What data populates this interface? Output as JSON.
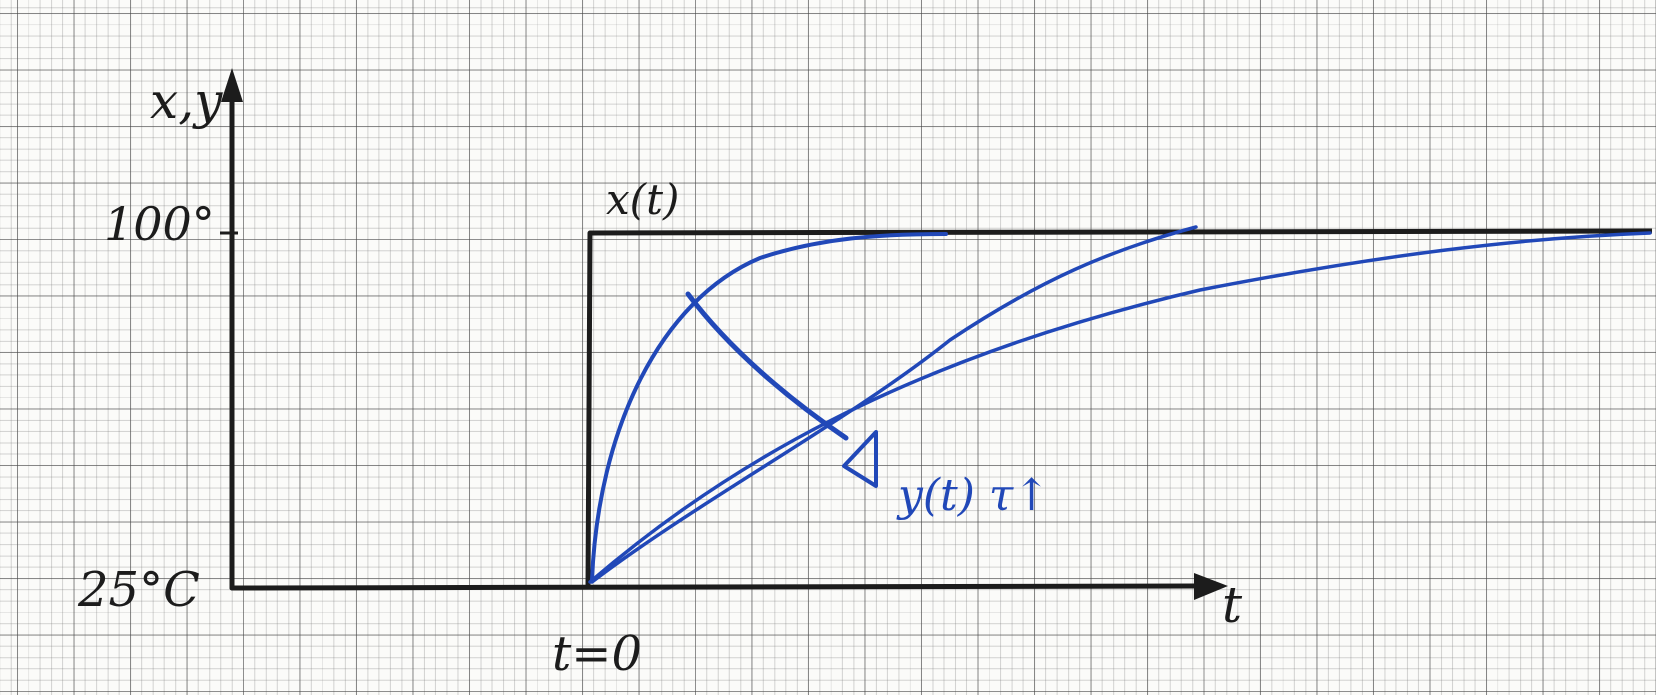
{
  "labels": {
    "y_axis": "x,y",
    "x_axis": "t",
    "y_high": "100°",
    "y_low": "25°C",
    "t_origin": "t=0",
    "input_signal": "x(t)",
    "output_signal": "y(t) τ↑"
  },
  "curves": [
    {
      "name": "response-tau-small",
      "tau": "small"
    },
    {
      "name": "response-tau-medium",
      "tau": "medium"
    },
    {
      "name": "response-tau-large",
      "tau": "large"
    }
  ],
  "colors": {
    "axis_ink": "#1c1c1c",
    "curve_ink": "#2148b8",
    "grid_major": "#6a6a6a",
    "paper": "#fbfbf9"
  }
}
